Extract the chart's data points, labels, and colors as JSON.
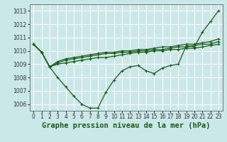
{
  "title": "Graphe pression niveau de la mer (hPa)",
  "background_color": "#cbe8e8",
  "grid_color": "#ffffff",
  "line_color": "#1a5c1a",
  "x_values": [
    0,
    1,
    2,
    3,
    4,
    5,
    6,
    7,
    8,
    9,
    10,
    11,
    12,
    13,
    14,
    15,
    16,
    17,
    18,
    19,
    20,
    21,
    22,
    23
  ],
  "series": [
    [
      1010.5,
      1009.9,
      1008.8,
      1008.0,
      1007.3,
      1006.6,
      1006.0,
      1005.7,
      1005.7,
      1006.9,
      1007.8,
      1008.5,
      1008.8,
      1008.9,
      1008.5,
      1008.3,
      1008.7,
      1008.9,
      1009.0,
      1010.4,
      1010.3,
      1011.4,
      1012.2,
      1013.0
    ],
    [
      1010.5,
      1009.9,
      1008.8,
      1009.0,
      1009.1,
      1009.2,
      1009.3,
      1009.4,
      1009.5,
      1009.5,
      1009.6,
      1009.7,
      1009.8,
      1009.9,
      1009.9,
      1010.0,
      1010.0,
      1010.1,
      1010.1,
      1010.2,
      1010.2,
      1010.3,
      1010.4,
      1010.5
    ],
    [
      1010.5,
      1009.9,
      1008.8,
      1009.1,
      1009.3,
      1009.4,
      1009.5,
      1009.6,
      1009.7,
      1009.8,
      1009.8,
      1009.9,
      1009.9,
      1010.0,
      1010.0,
      1010.1,
      1010.1,
      1010.2,
      1010.3,
      1010.3,
      1010.4,
      1010.5,
      1010.5,
      1010.7
    ],
    [
      1010.5,
      1009.9,
      1008.8,
      1009.2,
      1009.4,
      1009.5,
      1009.6,
      1009.7,
      1009.8,
      1009.9,
      1009.9,
      1010.0,
      1010.0,
      1010.1,
      1010.1,
      1010.2,
      1010.3,
      1010.3,
      1010.4,
      1010.5,
      1010.5,
      1010.6,
      1010.7,
      1010.9
    ]
  ],
  "ylim": [
    1005.5,
    1013.5
  ],
  "yticks": [
    1006,
    1007,
    1008,
    1009,
    1010,
    1011,
    1012,
    1013
  ],
  "xlim": [
    -0.5,
    23.5
  ],
  "xticks": [
    0,
    1,
    2,
    3,
    4,
    5,
    6,
    7,
    8,
    9,
    10,
    11,
    12,
    13,
    14,
    15,
    16,
    17,
    18,
    19,
    20,
    21,
    22,
    23
  ],
  "marker": "+",
  "markersize": 3.5,
  "linewidth": 0.9,
  "title_fontsize": 7.5,
  "tick_fontsize": 5.5
}
